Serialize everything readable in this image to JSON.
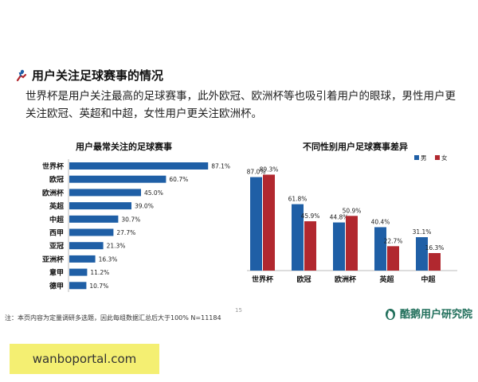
{
  "header": {
    "title": "用户关注足球赛事的情况",
    "description": "世界杯是用户关注最高的足球赛事，此外欧冠、欧洲杯等也吸引着用户的眼球，男性用户更关注欧冠、英超和中超，女性用户更关注欧洲杯。"
  },
  "colors": {
    "blue": "#1f5fa6",
    "red": "#b1282f",
    "accent": "#1f6e5a"
  },
  "chart_data": [
    {
      "type": "bar",
      "orientation": "horizontal",
      "title": "用户最常关注的足球赛事",
      "categories": [
        "世界杯",
        "欧冠",
        "欧洲杯",
        "英超",
        "中超",
        "西甲",
        "亚冠",
        "亚洲杯",
        "意甲",
        "德甲"
      ],
      "values": [
        87.1,
        60.7,
        45.0,
        39.0,
        30.7,
        27.7,
        21.3,
        16.3,
        11.2,
        10.7
      ],
      "labels": [
        "87.1%",
        "60.7%",
        "45.0%",
        "39.0%",
        "30.7%",
        "27.7%",
        "21.3%",
        "16.3%",
        "11.2%",
        "10.7%"
      ],
      "xlim": [
        0,
        100
      ]
    },
    {
      "type": "bar",
      "title": "不同性别用户足球赛事差异",
      "categories": [
        "世界杯",
        "欧冠",
        "欧洲杯",
        "英超",
        "中超"
      ],
      "series": [
        {
          "name": "男",
          "values": [
            87.0,
            61.8,
            44.8,
            40.4,
            31.1
          ],
          "labels": [
            "87.0%",
            "61.8%",
            "44.8%",
            "40.4%",
            "31.1%"
          ]
        },
        {
          "name": "女",
          "values": [
            89.3,
            45.9,
            50.9,
            22.7,
            16.3
          ],
          "labels": [
            "89.3%",
            "45.9%",
            "50.9%",
            "22.7%",
            "16.3%"
          ]
        }
      ],
      "legend": "top-right",
      "ylim": [
        0,
        100
      ]
    }
  ],
  "footer": {
    "note": "注：本页内容为定量调研多选题，因此每组数据汇总后大于100%  N=11184",
    "page_number": "15",
    "brand": "酷鹅用户研究院"
  },
  "watermark": "wanboportal.com"
}
